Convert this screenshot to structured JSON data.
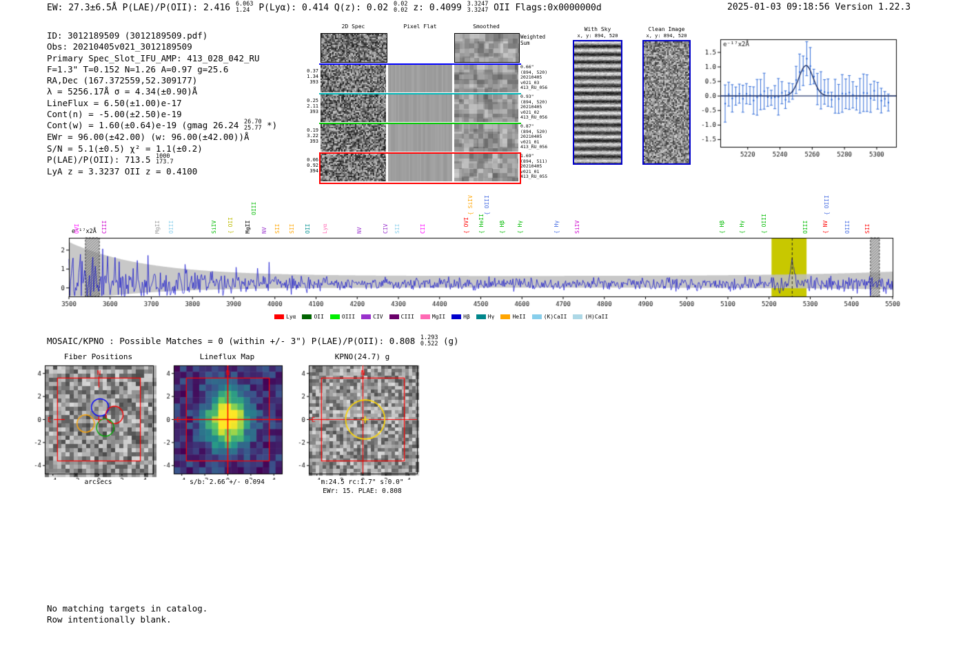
{
  "header": {
    "left_segments": [
      {
        "t": "EW: 27.3±6.5Å  P(LAE)/P(OII): 2.416 "
      },
      {
        "frac": [
          "6.063",
          "1.24"
        ]
      },
      {
        "t": "  P(Lyα): 0.414  Q(z): 0.02 "
      },
      {
        "frac": [
          "0.02",
          "0.02"
        ]
      },
      {
        "t": "  z: 0.4099 "
      },
      {
        "frac": [
          "3.3247",
          "3.3247"
        ]
      },
      {
        "t": " OII  Flags:0x0000000d"
      }
    ],
    "right": "2025-01-03 09:18:56  Version 1.22.3"
  },
  "info": {
    "lines": [
      [
        {
          "t": "ID: 3012189509 (3012189509.pdf)"
        }
      ],
      [
        {
          "t": "Obs: 20210405v021_3012189509"
        }
      ],
      [
        {
          "t": "Primary Spec_Slot_IFU_AMP: 413_028_042_RU"
        }
      ],
      [
        {
          "t": "F=1.3\"  T=0.152  N=1.26  A=0.97  g=25.6"
        }
      ],
      [
        {
          "t": "RA,Dec (167.372559,52.309177)"
        }
      ],
      [
        {
          "t": "λ = 5256.17Å  σ = 4.34(±0.90)Å"
        }
      ],
      [
        {
          "t": "LineFlux = 6.50(±1.00)e-17"
        }
      ],
      [
        {
          "t": "Cont(n) = -5.00(±2.50)e-19"
        }
      ],
      [
        {
          "t": "Cont(w) = 1.60(±0.64)e-19 (gmag 26.24 "
        },
        {
          "frac": [
            "26.70",
            "25.77"
          ]
        },
        {
          "t": " *)"
        }
      ],
      [
        {
          "t": "EWr = 96.00(±42.00) (w: 96.00(±42.00))Å"
        }
      ],
      [
        {
          "t": "S/N = 5.1(±0.5)  χ² = 1.1(±0.2)"
        }
      ],
      [
        {
          "t": "P(LAE)/P(OII): 713.5 "
        },
        {
          "frac": [
            "1000",
            "173.7"
          ]
        }
      ],
      [
        {
          "t": "LyA z = 3.3237  OII z = 0.4100"
        }
      ]
    ]
  },
  "spec2d": {
    "col_headers": [
      "2D Spec",
      "Pixel Flat",
      "Smoothed"
    ],
    "weighted_sum": "Weighted Sum",
    "rows": [
      {
        "left": [
          "0.37",
          "1.34",
          "393"
        ],
        "color": "#0000ff",
        "right": [
          "0.66\"",
          "(894, 520)",
          "20210405",
          "v021_03",
          "413_RU_056"
        ]
      },
      {
        "left": [
          "0.25",
          "2.11",
          "393"
        ],
        "color": "#00b7b7",
        "right": [
          "0.93\"",
          "(894, 520)",
          "20210405",
          "v021_02",
          "413_RU_056"
        ]
      },
      {
        "left": [
          "0.19",
          "3.22",
          "393"
        ],
        "color": "#00cc00",
        "right": [
          "0.87\"",
          "(894, 520)",
          "20210405",
          "v021_01",
          "413_RU_056"
        ]
      },
      {
        "left": [
          "0.06",
          "0.92",
          "394"
        ],
        "color": "#ff0000",
        "right": [
          "1.69\"",
          "(894, 511)",
          "20210405",
          "v021_01",
          "413_RU_055"
        ]
      }
    ]
  },
  "cutout_panels": {
    "with_sky": {
      "title": "With Sky",
      "subtitle": "x, y: 894, 520"
    },
    "clean": {
      "title": "Clean Image",
      "subtitle": "x, y: 894, 520"
    }
  },
  "mosaic": {
    "segments": [
      {
        "t": "MOSAIC/KPNO : Possible Matches = 0 (within +/- 3\")  P(LAE)/P(OII): 0.808 "
      },
      {
        "frac": [
          "1.293",
          "0.522"
        ]
      },
      {
        "t": " (g)"
      }
    ]
  },
  "compass": {
    "n": "N",
    "e": "E"
  },
  "footer": {
    "line1": "No matching targets in catalog.",
    "line2": "Row intentionally blank."
  },
  "chart_data": [
    {
      "id": "zoom_spectrum",
      "type": "line",
      "ylabel": "e⁻¹⁷x2Å",
      "xlim": [
        5203,
        5312
      ],
      "ylim": [
        -1.75,
        1.95
      ],
      "xticks": [
        5220,
        5240,
        5260,
        5280,
        5300
      ],
      "yticks": [
        1.5,
        1.0,
        0.5,
        0.0,
        -0.5,
        -1.0,
        -1.5
      ],
      "fit": {
        "type": "gaussian",
        "center": 5256.17,
        "sigma": 4.34,
        "amplitude": 1.05,
        "baseline": 0.0
      },
      "point_color": "#2f6bd8",
      "fit_color": "#24366b"
    },
    {
      "id": "main_spectrum",
      "type": "line",
      "ylabel": "e⁻¹⁷x2Å",
      "xlim": [
        3500,
        5500
      ],
      "ylim": [
        -0.45,
        2.65
      ],
      "xticks": [
        3500,
        3600,
        3700,
        3800,
        3900,
        4000,
        4100,
        4200,
        4300,
        4400,
        4500,
        4600,
        4700,
        4800,
        4900,
        5000,
        5100,
        5200,
        5300,
        5400,
        5500
      ],
      "yticks": [
        0,
        1,
        2
      ],
      "line_color": "#0000cc",
      "error_band_color": "#bebebe",
      "detection_band": {
        "range": [
          5206,
          5291
        ],
        "color": "#c8c800"
      },
      "detection_line": 5256.17,
      "hatched_bands": [
        [
          3540,
          3574
        ],
        [
          5446,
          5468
        ]
      ],
      "emission_labels": [
        {
          "label": "OVI",
          "wl": 3533,
          "color": "#ff00ff"
        },
        {
          "label": "CIII",
          "wl": 3600,
          "color": "#cc00cc"
        },
        {
          "label": "MgII",
          "wl": 3729,
          "color": "#999999"
        },
        {
          "label": "OIII",
          "wl": 3762,
          "color": "#87ceeb"
        },
        {
          "label": "SiIV",
          "wl": 3866,
          "color": "#00bb00"
        },
        {
          "label": "OII",
          "wl": 3906,
          "color": "#bbbb00",
          "brace": true
        },
        {
          "label": "MgII",
          "wl": 3949,
          "color": "#444444",
          "bold": true
        },
        {
          "label": "OIII",
          "wl": 3964,
          "color": "#00bb00",
          "tier": 1
        },
        {
          "label": "NV",
          "wl": 3988,
          "color": "#9932cc"
        },
        {
          "label": "SII",
          "wl": 4021,
          "color": "#ffa500"
        },
        {
          "label": "SII",
          "wl": 4056,
          "color": "#ffa500"
        },
        {
          "label": "OII",
          "wl": 4094,
          "color": "#009090"
        },
        {
          "label": "Lyα",
          "wl": 4136,
          "color": "#ff69b4"
        },
        {
          "label": "NV",
          "wl": 4220,
          "color": "#9932cc"
        },
        {
          "label": "CIV",
          "wl": 4283,
          "color": "#9932cc"
        },
        {
          "label": "SII",
          "wl": 4312,
          "color": "#87ceeb"
        },
        {
          "label": "CII",
          "wl": 4374,
          "color": "#ff00ff"
        },
        {
          "label": "OVI",
          "wl": 4479,
          "color": "#ff0000",
          "brace": true
        },
        {
          "label": "SiIV",
          "wl": 4489,
          "color": "#ffa500",
          "tier": 1,
          "brace": true
        },
        {
          "label": "HeII",
          "wl": 4516,
          "color": "#00bb00",
          "brace": true
        },
        {
          "label": "OIII",
          "wl": 4529,
          "color": "#4169e1",
          "tier": 1,
          "brace": true
        },
        {
          "label": "Hβ",
          "wl": 4566,
          "color": "#00bb00",
          "brace": true
        },
        {
          "label": "Hγ",
          "wl": 4610,
          "color": "#00bb00",
          "brace": true
        },
        {
          "label": "Hγ",
          "wl": 4698,
          "color": "#4169e1",
          "brace": true
        },
        {
          "label": "SiIV",
          "wl": 4748,
          "color": "#cc00cc"
        },
        {
          "label": "Hβ",
          "wl": 5100,
          "color": "#00bb00",
          "brace": true
        },
        {
          "label": "Hγ",
          "wl": 5148,
          "color": "#00bb00",
          "brace": true
        },
        {
          "label": "OIII",
          "wl": 5202,
          "color": "#00bb00",
          "brace": true
        },
        {
          "label": "OIII",
          "wl": 5302,
          "color": "#00bb00"
        },
        {
          "label": "NV",
          "wl": 5351,
          "color": "#ff0000",
          "brace": true
        },
        {
          "label": "OIII",
          "wl": 5355,
          "color": "#4169e1",
          "tier": 1,
          "brace": true
        },
        {
          "label": "OIII",
          "wl": 5404,
          "color": "#4169e1"
        },
        {
          "label": "SII",
          "wl": 5453,
          "color": "#ff0000"
        }
      ],
      "legend": [
        {
          "label": "Lyα",
          "color": "#ff0000"
        },
        {
          "label": "OII",
          "color": "#006400"
        },
        {
          "label": "OIII",
          "color": "#00ee00"
        },
        {
          "label": "CIV",
          "color": "#9932cc"
        },
        {
          "label": "CIII",
          "color": "#6a006a"
        },
        {
          "label": "MgII",
          "color": "#ff69b4"
        },
        {
          "label": "Hβ",
          "color": "#0000cd"
        },
        {
          "label": "Hγ",
          "color": "#00868b"
        },
        {
          "label": "HeII",
          "color": "#ffa500"
        },
        {
          "label": "(K)CaII",
          "color": "#87ceeb"
        },
        {
          "label": "(H)CaII",
          "color": "#add8e6"
        }
      ]
    },
    {
      "id": "fiber_positions",
      "type": "image",
      "title": "Fiber Positions",
      "xlabel": "arcsecs",
      "ticks": [
        -4,
        -2,
        0,
        2,
        4
      ],
      "fibers": [
        {
          "color": "#0000ff",
          "x": 0.1,
          "y": 1.05,
          "r": 0.75
        },
        {
          "color": "#ff0000",
          "x": 1.35,
          "y": 0.4,
          "r": 0.75
        },
        {
          "color": "#00aa00",
          "x": 0.55,
          "y": -0.7,
          "r": 0.75
        },
        {
          "color": "#ffa500",
          "x": -1.15,
          "y": -0.35,
          "r": 0.75
        }
      ]
    },
    {
      "id": "lineflux_map",
      "type": "heatmap",
      "title": "Lineflux Map",
      "caption": "s/b: 2.66 +/- 0.094",
      "ticks": [
        -4,
        -2,
        0,
        2,
        4
      ],
      "colormap": "viridis"
    },
    {
      "id": "kpno_cutout",
      "type": "image",
      "title": "KPNO(24.7) g",
      "caption1": "m:24.5 rc:1.7\"  s:0.0\"",
      "caption2": "EWr: 15. PLAE: 0.808",
      "ticks": [
        -4,
        -2,
        0,
        2,
        4
      ],
      "aperture": {
        "x": 0.2,
        "y": 0.0,
        "r": 1.7,
        "color": "#ffd700"
      }
    }
  ]
}
